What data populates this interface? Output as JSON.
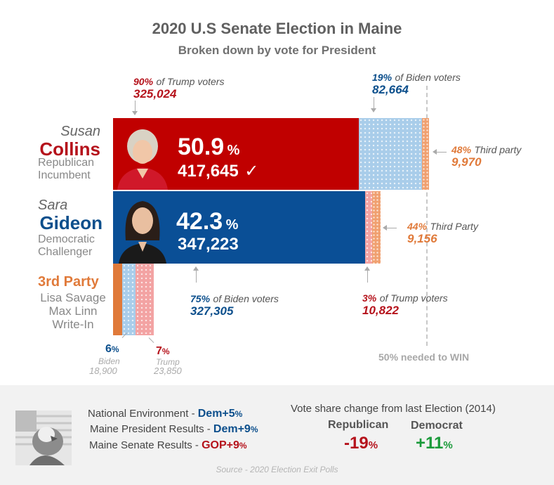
{
  "header": {
    "title": "2020 U.S Senate Election in Maine",
    "subtitle": "Broken down by vote for President"
  },
  "colors": {
    "republican": "#c00000",
    "democrat": "#0a4f96",
    "third_party": "#e07a3a",
    "biden_dots": "#a9cdea",
    "trump_dots": "#f3a3a3",
    "threshold_line": "#bbbbbb"
  },
  "candidates": {
    "collins": {
      "first": "Susan",
      "last": "Collins",
      "role1": "Republican",
      "role2": "Incumbent",
      "pct": "50.9",
      "pct_sign": "%",
      "votes": "417,645",
      "winner_mark": "✓"
    },
    "gideon": {
      "first": "Sara",
      "last": "Gideon",
      "role1": "Democratic",
      "role2": "Challenger",
      "pct": "42.3",
      "pct_sign": "%",
      "votes": "347,223"
    },
    "third": {
      "label": "3rd Party",
      "names": [
        "Lisa Savage",
        "Max Linn",
        "Write-In"
      ]
    }
  },
  "annotations": {
    "collins_trump": {
      "pct": "90%",
      "text": "of Trump voters",
      "num": "325,024"
    },
    "collins_biden": {
      "pct": "19%",
      "text": "of Biden voters",
      "num": "82,664"
    },
    "collins_third": {
      "pct": "48%",
      "text": "Third party",
      "num": "9,970"
    },
    "gideon_biden": {
      "pct": "75%",
      "text": "of Biden voters",
      "num": "327,305"
    },
    "gideon_trump": {
      "pct": "3%",
      "text": "of Trump voters",
      "num": "10,822"
    },
    "gideon_third": {
      "pct": "44%",
      "text": "Third Party",
      "num": "9,156"
    },
    "third_biden": {
      "pct_num": "6",
      "pct_sign": "%",
      "label": "Biden",
      "num": "18,900"
    },
    "third_trump": {
      "pct_num": "7",
      "pct_sign": "%",
      "label": "Trump",
      "num": "23,850"
    },
    "threshold": "50% needed to WIN"
  },
  "footer": {
    "lines": [
      {
        "label": "National Environment - ",
        "value": "Dem+5",
        "sign": "%"
      },
      {
        "label": "Maine President Results - ",
        "value": "Dem+9",
        "sign": "%"
      },
      {
        "label": "Maine Senate Results - ",
        "value": "GOP+9",
        "sign": "%"
      }
    ],
    "change_title": "Vote share change from last Election (2014)",
    "rep_label": "Republican",
    "rep_value": "-19",
    "dem_label": "Democrat",
    "dem_value": "+11",
    "pct_sign": "%",
    "source": "Source - 2020 Election Exit Polls"
  },
  "chart_data": {
    "type": "bar",
    "title": "2020 U.S Senate Election in Maine",
    "subtitle": "Broken down by vote for President",
    "categories": [
      "Susan Collins",
      "Sara Gideon",
      "3rd Party"
    ],
    "values_pct": [
      50.9,
      42.3,
      6.8
    ],
    "threshold_pct": 50,
    "segments": [
      {
        "candidate": "Susan Collins",
        "group": "Trump voters",
        "votes": 325024,
        "pct_of_group": 90
      },
      {
        "candidate": "Susan Collins",
        "group": "Biden voters",
        "votes": 82664,
        "pct_of_group": 19
      },
      {
        "candidate": "Susan Collins",
        "group": "Third party",
        "votes": 9970,
        "pct_of_group": 48
      },
      {
        "candidate": "Sara Gideon",
        "group": "Biden voters",
        "votes": 327305,
        "pct_of_group": 75
      },
      {
        "candidate": "Sara Gideon",
        "group": "Trump voters",
        "votes": 10822,
        "pct_of_group": 3
      },
      {
        "candidate": "Sara Gideon",
        "group": "Third party",
        "votes": 9156,
        "pct_of_group": 44
      },
      {
        "candidate": "3rd Party",
        "group": "Biden voters",
        "votes": 18900,
        "pct_of_group": 6
      },
      {
        "candidate": "3rd Party",
        "group": "Trump voters",
        "votes": 23850,
        "pct_of_group": 7
      }
    ]
  }
}
